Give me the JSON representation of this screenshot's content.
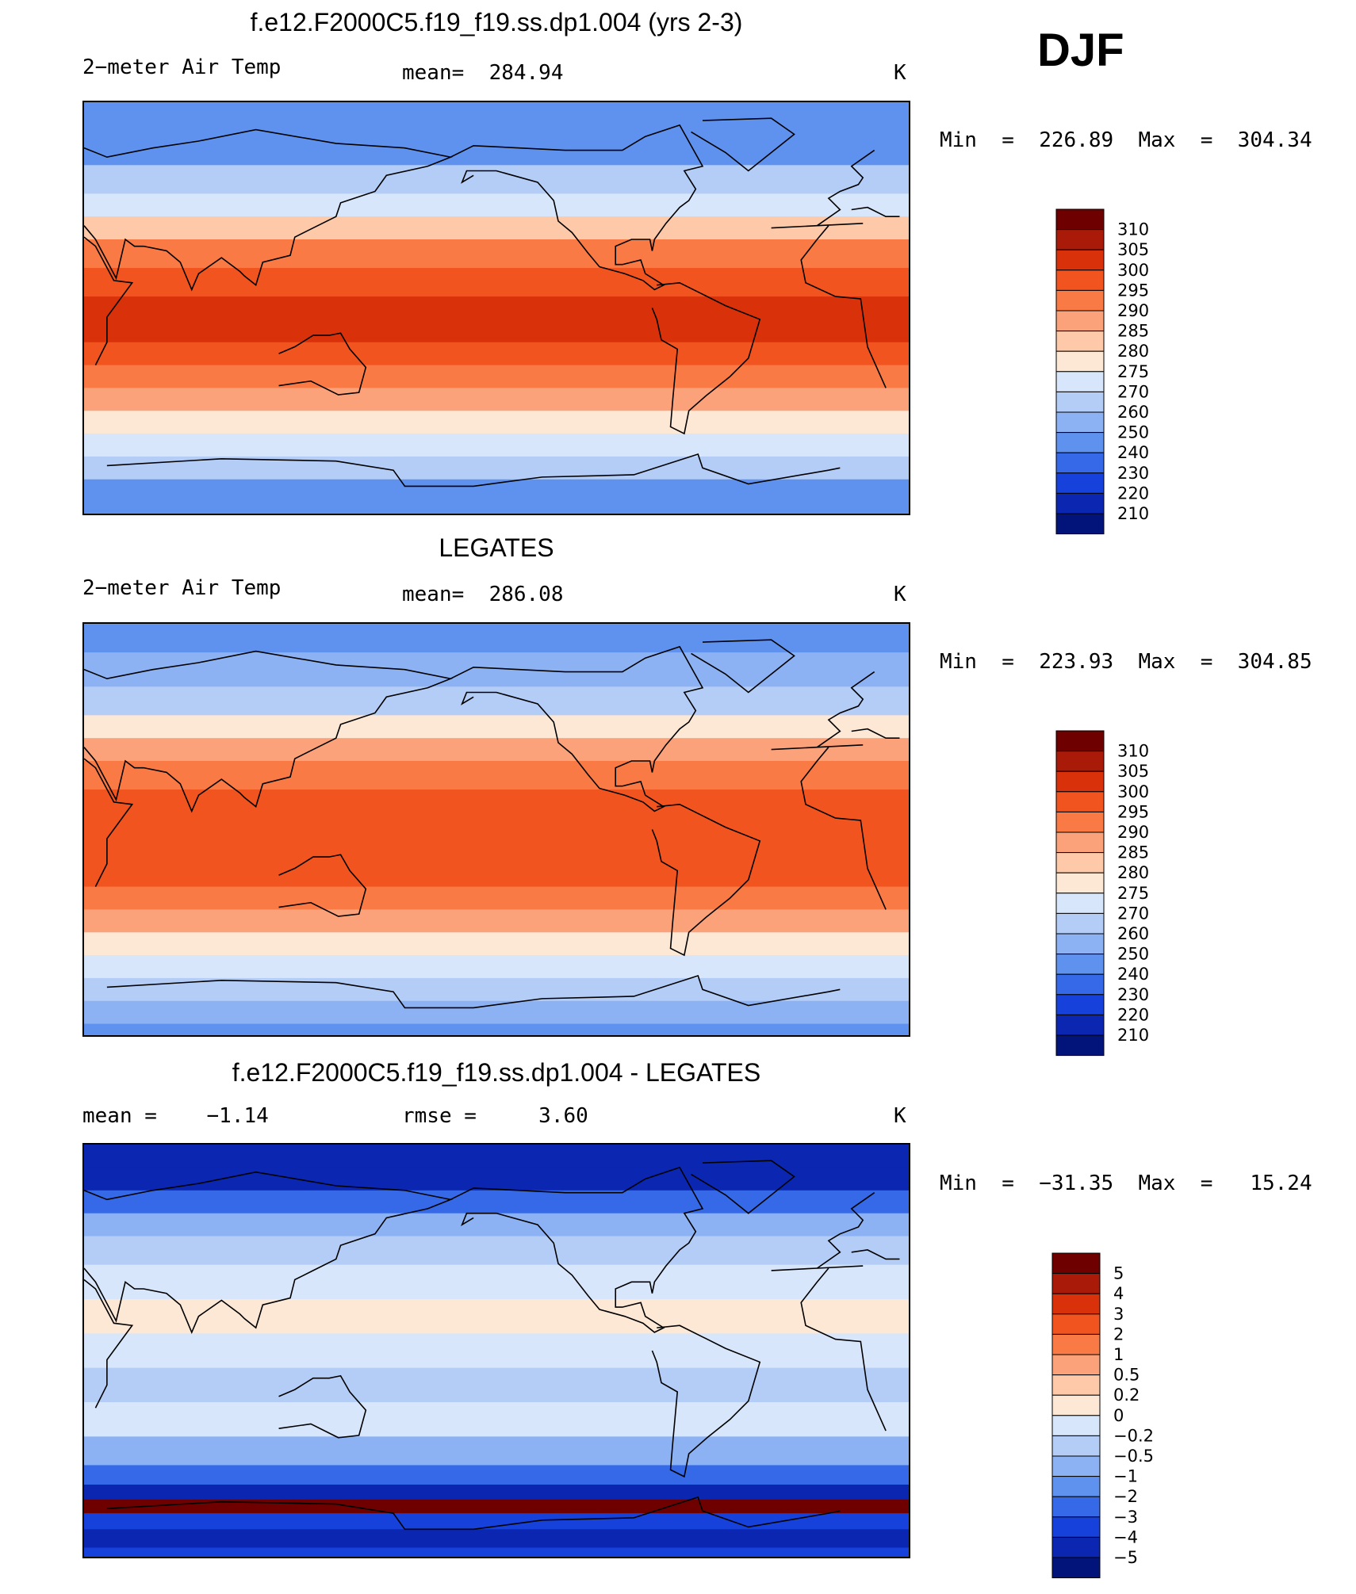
{
  "header": {
    "season": "DJF"
  },
  "panels": [
    {
      "id": "model",
      "title": "f.e12.F2000C5.f19_f19.ss.dp1.004 (yrs 2-3)",
      "left_label": "2−meter Air Temp",
      "center_label": "mean=  284.94",
      "units": "K",
      "minmax": "Min  =  226.89  Max  =  304.34"
    },
    {
      "id": "obs",
      "title": "LEGATES",
      "left_label": "2−meter Air Temp",
      "center_label": "mean=  286.08",
      "units": "K",
      "minmax": "Min  =  223.93  Max  =  304.85"
    },
    {
      "id": "diff",
      "title": "f.e12.F2000C5.f19_f19.ss.dp1.004 - LEGATES",
      "left_label": "mean =    −1.14",
      "center_label": "rmse =     3.60",
      "units": "K",
      "minmax": "Min  =  −31.35  Max  =   15.24"
    }
  ],
  "chart_data": [
    {
      "type": "heatmap",
      "title": "f.e12.F2000C5.f19_f19.ss.dp1.004 (yrs 2-3)",
      "field": "2-meter Air Temp",
      "season": "DJF",
      "units": "K",
      "mean": 284.94,
      "min": 226.89,
      "max": 304.34,
      "colorbar_levels": [
        310,
        305,
        300,
        295,
        290,
        285,
        280,
        275,
        270,
        260,
        250,
        240,
        230,
        220,
        210
      ],
      "colorbar_colors": [
        "#6e0000",
        "#a91a08",
        "#d9320a",
        "#f2541f",
        "#fa7a45",
        "#fca27a",
        "#fdc9a8",
        "#fde8d6",
        "#d7e6fa",
        "#b3cdf7",
        "#8cb2f3",
        "#5f92ee",
        "#3569e7",
        "#1641da",
        "#0b26b0",
        "#02137a"
      ],
      "latitude_bands": [
        {
          "lat": 85,
          "value": 241
        },
        {
          "lat": 70,
          "value": 248
        },
        {
          "lat": 55,
          "value": 262
        },
        {
          "lat": 45,
          "value": 274
        },
        {
          "lat": 35,
          "value": 284
        },
        {
          "lat": 25,
          "value": 292
        },
        {
          "lat": 10,
          "value": 298
        },
        {
          "lat": 0,
          "value": 300
        },
        {
          "lat": -10,
          "value": 300
        },
        {
          "lat": -20,
          "value": 297
        },
        {
          "lat": -30,
          "value": 292
        },
        {
          "lat": -40,
          "value": 285
        },
        {
          "lat": -50,
          "value": 277
        },
        {
          "lat": -60,
          "value": 271
        },
        {
          "lat": -70,
          "value": 262
        },
        {
          "lat": -80,
          "value": 246
        },
        {
          "lat": -90,
          "value": 240
        }
      ]
    },
    {
      "type": "heatmap",
      "title": "LEGATES",
      "field": "2-meter Air Temp",
      "season": "DJF",
      "units": "K",
      "mean": 286.08,
      "min": 223.93,
      "max": 304.85,
      "colorbar_levels": [
        310,
        305,
        300,
        295,
        290,
        285,
        280,
        275,
        270,
        260,
        250,
        240,
        230,
        220,
        210
      ],
      "colorbar_colors": [
        "#6e0000",
        "#a91a08",
        "#d9320a",
        "#f2541f",
        "#fa7a45",
        "#fca27a",
        "#fdc9a8",
        "#fde8d6",
        "#d7e6fa",
        "#b3cdf7",
        "#8cb2f3",
        "#5f92ee",
        "#3569e7",
        "#1641da",
        "#0b26b0",
        "#02137a"
      ],
      "latitude_bands": [
        {
          "lat": 85,
          "value": 244
        },
        {
          "lat": 70,
          "value": 250
        },
        {
          "lat": 55,
          "value": 263
        },
        {
          "lat": 45,
          "value": 275
        },
        {
          "lat": 35,
          "value": 285
        },
        {
          "lat": 25,
          "value": 292
        },
        {
          "lat": 10,
          "value": 297
        },
        {
          "lat": 0,
          "value": 299
        },
        {
          "lat": -10,
          "value": 299
        },
        {
          "lat": -20,
          "value": 297
        },
        {
          "lat": -30,
          "value": 292
        },
        {
          "lat": -40,
          "value": 286
        },
        {
          "lat": -50,
          "value": 279
        },
        {
          "lat": -60,
          "value": 272
        },
        {
          "lat": -70,
          "value": 265
        },
        {
          "lat": -80,
          "value": 252
        },
        {
          "lat": -90,
          "value": 245
        }
      ]
    },
    {
      "type": "heatmap",
      "title": "f.e12.F2000C5.f19_f19.ss.dp1.004 - LEGATES",
      "field": "2-meter Air Temp difference",
      "season": "DJF",
      "units": "K",
      "mean": -1.14,
      "rmse": 3.6,
      "min": -31.35,
      "max": 15.24,
      "colorbar_levels": [
        5,
        4,
        3,
        2,
        1,
        0.5,
        0.2,
        0,
        -0.2,
        -0.5,
        -1,
        -2,
        -3,
        -4,
        -5
      ],
      "colorbar_labels": [
        "5",
        "4",
        "3",
        "2",
        "1",
        "0.5",
        "0.2",
        "0",
        "−0.2",
        "−0.5",
        "−1",
        "−2",
        "−3",
        "−4",
        "−5"
      ],
      "colorbar_colors": [
        "#6e0000",
        "#a91a08",
        "#d9320a",
        "#f2541f",
        "#fa7a45",
        "#fca27a",
        "#fdc9a8",
        "#fde8d6",
        "#d7e6fa",
        "#b3cdf7",
        "#8cb2f3",
        "#5f92ee",
        "#3569e7",
        "#1641da",
        "#0b26b0",
        "#02137a"
      ],
      "latitude_bands": [
        {
          "lat": 85,
          "value": -5
        },
        {
          "lat": 75,
          "value": -5
        },
        {
          "lat": 65,
          "value": -3
        },
        {
          "lat": 55,
          "value": -1
        },
        {
          "lat": 45,
          "value": -0.3
        },
        {
          "lat": 30,
          "value": -0.1
        },
        {
          "lat": 15,
          "value": 0.1
        },
        {
          "lat": 0,
          "value": -0.1
        },
        {
          "lat": -15,
          "value": -0.3
        },
        {
          "lat": -30,
          "value": -0.2
        },
        {
          "lat": -45,
          "value": -0.8
        },
        {
          "lat": -55,
          "value": -3
        },
        {
          "lat": -62,
          "value": -5
        },
        {
          "lat": -68,
          "value": 5
        },
        {
          "lat": -74,
          "value": -4
        },
        {
          "lat": -82,
          "value": -5
        },
        {
          "lat": -90,
          "value": -4
        }
      ]
    }
  ]
}
